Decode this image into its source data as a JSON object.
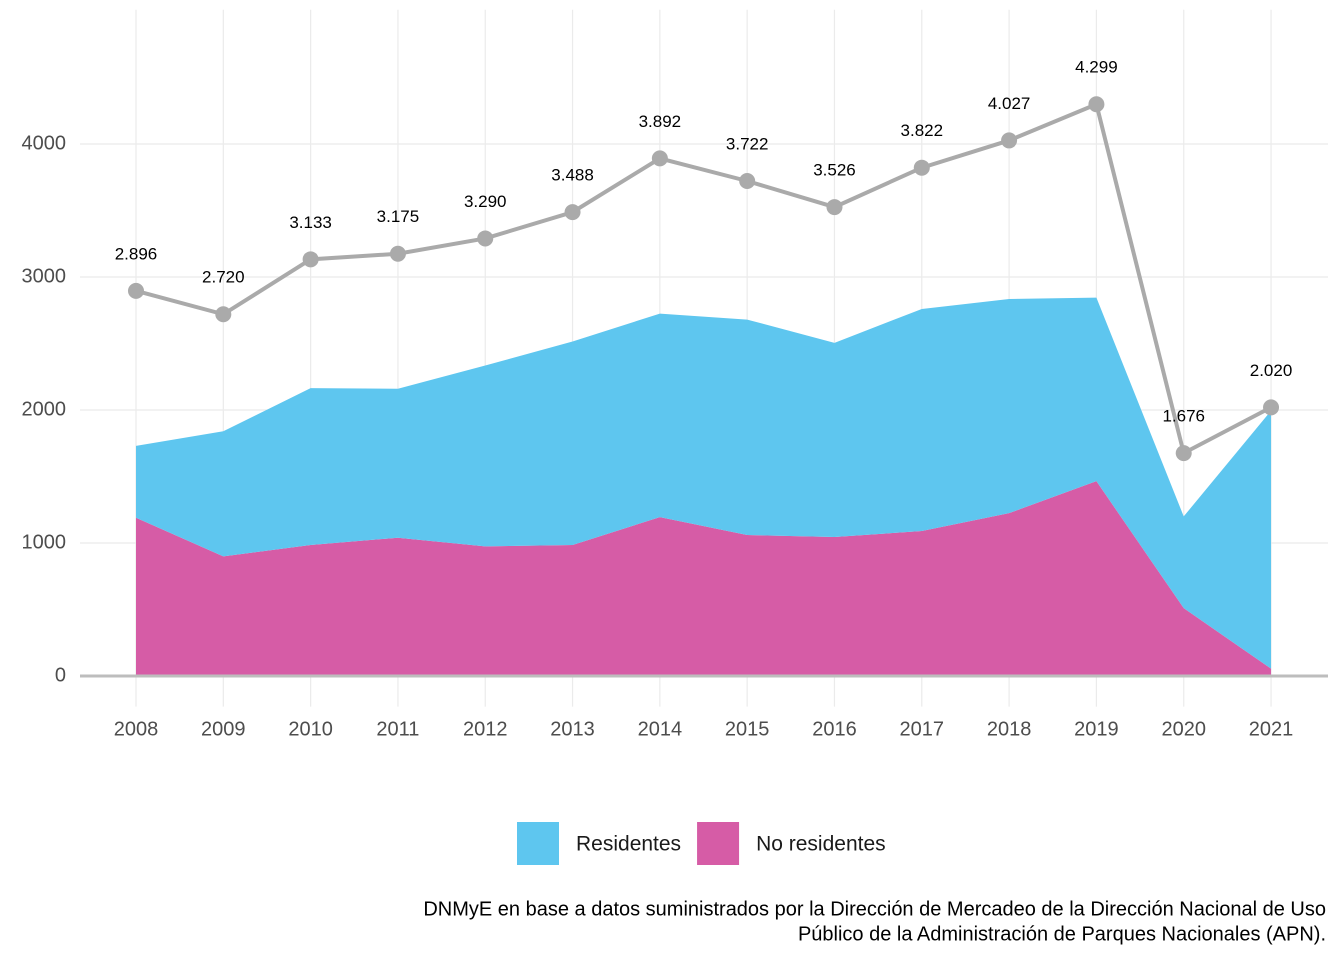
{
  "chart_data": {
    "type": "stacked_area_line",
    "categories": [
      "2008",
      "2009",
      "2010",
      "2011",
      "2012",
      "2013",
      "2014",
      "2015",
      "2016",
      "2017",
      "2018",
      "2019",
      "2020",
      "2021"
    ],
    "series": [
      {
        "name": "Residentes",
        "color": "#5ec6ef",
        "values": [
          540,
          940,
          1180,
          1120,
          1360,
          1530,
          1530,
          1620,
          1460,
          1670,
          1610,
          1380,
          690,
          1940
        ]
      },
      {
        "name": "No residentes",
        "color": "#d65ca6",
        "values": [
          1190,
          900,
          985,
          1040,
          975,
          985,
          1195,
          1060,
          1045,
          1090,
          1225,
          1465,
          510,
          55
        ]
      }
    ],
    "line": {
      "color": "#aaaaaa",
      "values": [
        2896,
        2720,
        3133,
        3175,
        3290,
        3488,
        3892,
        3722,
        3526,
        3822,
        4027,
        4299,
        1676,
        2020
      ],
      "value_labels": [
        "2.896",
        "2.720",
        "3.133",
        "3.175",
        "3.290",
        "3.488",
        "3.892",
        "3.722",
        "3.526",
        "3.822",
        "4.027",
        "4.299",
        "1.676",
        "2.020"
      ]
    },
    "ylim": [
      -230,
      5010
    ],
    "yticks": [
      0,
      1000,
      2000,
      3000,
      4000
    ],
    "grid": true,
    "legend": "bottom",
    "caption": [
      "DNMyE en base a datos suministrados por la Dirección de Mercadeo de la Dirección Nacional de Uso",
      "Público de la Administración de Parques Nacionales (APN)."
    ]
  }
}
